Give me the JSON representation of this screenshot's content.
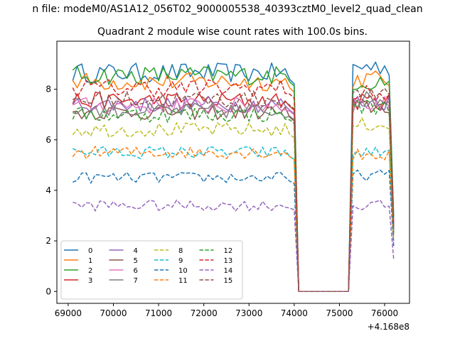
{
  "figure": {
    "suptitle": "n file: modeM0/AS1A12_056T02_9000005538_40393cztM0_level2_quad_clean",
    "title": "Quadrant 2 module wise count rates with 100.0s bins.",
    "x_offset_label": "+4.168e8"
  },
  "chart_data": {
    "type": "line",
    "title": "Quadrant 2 module wise count rates with 100.0s bins.",
    "xlabel": "",
    "ylabel": "",
    "x_offset": 416800000,
    "xlim": [
      68750,
      76550
    ],
    "ylim": [
      -0.47,
      9.9
    ],
    "x_ticks": [
      69000,
      70000,
      71000,
      72000,
      73000,
      74000,
      75000,
      76000
    ],
    "x_tick_labels": [
      "69000",
      "70000",
      "71000",
      "72000",
      "73000",
      "74000",
      "75000",
      "76000"
    ],
    "y_ticks": [
      0,
      2,
      4,
      6,
      8
    ],
    "y_tick_labels": [
      "0",
      "2",
      "4",
      "6",
      "8"
    ],
    "grid": false,
    "legend_position": "lower-left",
    "legend_columns": 4,
    "segments": [
      {
        "x_start": 69100,
        "x_end": 73800,
        "step": 100
      },
      {
        "x_start": 73900,
        "x_end": 74100,
        "step": 100
      },
      {
        "x_start": 74100,
        "x_end": 75200,
        "step": 100
      },
      {
        "x_start": 75300,
        "x_end": 76200,
        "step": 100
      }
    ],
    "series": [
      {
        "name": "0",
        "color": "#1f77b4",
        "dash": "solid",
        "level": 8.65,
        "end_level": 8.9,
        "drop_end": 3.0
      },
      {
        "name": "1",
        "color": "#ff7f0e",
        "dash": "solid",
        "level": 8.3,
        "end_level": 8.4,
        "drop_end": 2.6
      },
      {
        "name": "2",
        "color": "#2ca02c",
        "dash": "solid",
        "level": 8.55,
        "end_level": 8.3,
        "drop_end": 2.9
      },
      {
        "name": "3",
        "color": "#d62728",
        "dash": "solid",
        "level": 7.55,
        "end_level": 7.5,
        "drop_end": 2.4
      },
      {
        "name": "4",
        "color": "#9467bd",
        "dash": "solid",
        "level": 7.4,
        "end_level": 7.5,
        "drop_end": 2.7
      },
      {
        "name": "5",
        "color": "#8c564b",
        "dash": "solid",
        "level": 7.1,
        "end_level": 7.3,
        "drop_end": 2.5
      },
      {
        "name": "6",
        "color": "#e377c2",
        "dash": "solid",
        "level": 7.35,
        "end_level": 7.4,
        "drop_end": 2.6
      },
      {
        "name": "7",
        "color": "#7f7f7f",
        "dash": "solid",
        "level": 7.15,
        "end_level": 7.6,
        "drop_end": 2.4
      },
      {
        "name": "8",
        "color": "#bcbd22",
        "dash": "dashed",
        "level": 6.4,
        "end_level": 6.6,
        "drop_end": 2.2
      },
      {
        "name": "9",
        "color": "#17becf",
        "dash": "dashed",
        "level": 5.5,
        "end_level": 5.5,
        "drop_end": 2.0
      },
      {
        "name": "10",
        "color": "#1f77b4",
        "dash": "dashed",
        "level": 4.5,
        "end_level": 4.6,
        "drop_end": 1.8
      },
      {
        "name": "11",
        "color": "#ff7f0e",
        "dash": "dashed",
        "level": 5.5,
        "end_level": 5.4,
        "drop_end": 2.0
      },
      {
        "name": "12",
        "color": "#2ca02c",
        "dash": "dashed",
        "level": 7.0,
        "end_level": 7.3,
        "drop_end": 2.3
      },
      {
        "name": "13",
        "color": "#d62728",
        "dash": "dashed",
        "level": 8.05,
        "end_level": 7.8,
        "drop_end": 2.6
      },
      {
        "name": "14",
        "color": "#9467bd",
        "dash": "dashed",
        "level": 3.4,
        "end_level": 3.4,
        "drop_end": 1.3
      },
      {
        "name": "15",
        "color": "#8c564b",
        "dash": "dashed",
        "level": 7.6,
        "end_level": 7.7,
        "drop_end": 2.5
      }
    ]
  }
}
